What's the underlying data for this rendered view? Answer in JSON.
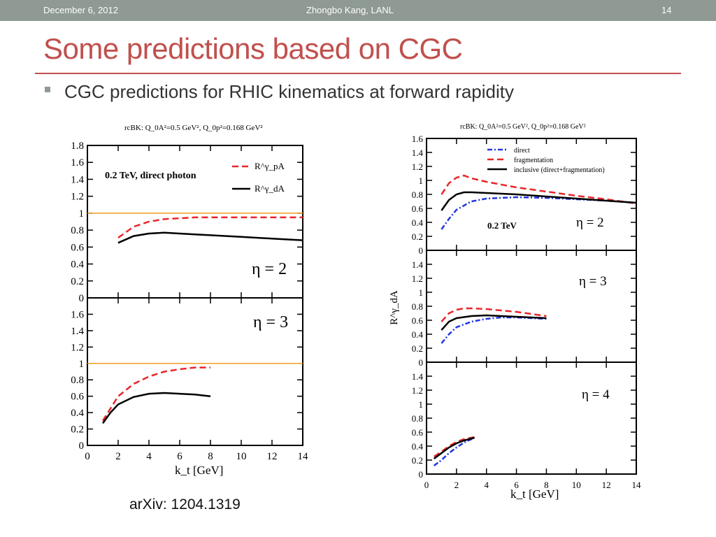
{
  "header": {
    "date": "December 6, 2012",
    "author": "Zhongbo Kang, LANL",
    "page": "14"
  },
  "slide": {
    "title": "Some predictions based on CGC",
    "bullet": "CGC predictions for RHIC kinematics at forward rapidity",
    "citation": "arXiv: 1204.1319"
  },
  "colors": {
    "bar": "#8e9a93",
    "accent": "#c0504d",
    "red_curve": "#e8262a",
    "blue_curve": "#2136e0",
    "unity_line": "#f0a020"
  },
  "chart_data": [
    {
      "type": "line",
      "header": "rcBK: Q_0A²=0.5 GeV², Q_0p²=0.168 GeV²",
      "xlabel": "k_t [GeV]",
      "ylabel": "",
      "xlim": [
        0,
        14
      ],
      "x_ticks": [
        "0",
        "2",
        "4",
        "6",
        "8",
        "10",
        "12",
        "14"
      ],
      "panel_label": "0.2 TeV, direct  photon",
      "legend": [
        {
          "label": "R^γ_pA",
          "style": "dashed-red"
        },
        {
          "label": "R^γ_dA",
          "style": "solid-black"
        }
      ],
      "panels": [
        {
          "eta_label": "η = 2",
          "ylim": [
            0,
            1.8
          ],
          "y_ticks": [
            "0",
            "0.2",
            "0.4",
            "0.6",
            "0.8",
            "1",
            "1.2",
            "1.4",
            "1.6",
            "1.8"
          ],
          "reference_line": 1,
          "series": [
            {
              "name": "R^γ_pA",
              "style": "dashed-red",
              "x": [
                2,
                3,
                4,
                5,
                6,
                7,
                8,
                10,
                12,
                14
              ],
              "y": [
                0.71,
                0.84,
                0.9,
                0.93,
                0.94,
                0.95,
                0.95,
                0.95,
                0.95,
                0.95
              ]
            },
            {
              "name": "R^γ_dA",
              "style": "solid-black",
              "x": [
                2,
                3,
                4,
                5,
                6,
                7,
                8,
                10,
                12,
                14
              ],
              "y": [
                0.65,
                0.73,
                0.76,
                0.77,
                0.76,
                0.75,
                0.74,
                0.72,
                0.7,
                0.68
              ]
            }
          ]
        },
        {
          "eta_label": "η = 3",
          "ylim": [
            0,
            1.8
          ],
          "y_ticks": [
            "0",
            "0.2",
            "0.4",
            "0.6",
            "0.8",
            "1",
            "1.2",
            "1.4",
            "1.6"
          ],
          "reference_line": 1,
          "series": [
            {
              "name": "R^γ_pA",
              "style": "dashed-red",
              "x": [
                1,
                1.5,
                2,
                3,
                4,
                5,
                6,
                7,
                8
              ],
              "y": [
                0.3,
                0.45,
                0.6,
                0.75,
                0.84,
                0.9,
                0.93,
                0.95,
                0.95
              ]
            },
            {
              "name": "R^γ_dA",
              "style": "solid-black",
              "x": [
                1,
                1.5,
                2,
                3,
                4,
                5,
                6,
                7,
                8
              ],
              "y": [
                0.27,
                0.4,
                0.5,
                0.59,
                0.63,
                0.64,
                0.63,
                0.62,
                0.6
              ]
            }
          ]
        }
      ]
    },
    {
      "type": "line",
      "header": "rcBK: Q_0A²=0.5 GeV², Q_0p²=0.168 GeV²",
      "xlabel": "k_t [GeV]",
      "ylabel": "R^γ_dA",
      "xlim": [
        0,
        14
      ],
      "x_ticks": [
        "0",
        "2",
        "4",
        "6",
        "8",
        "10",
        "12",
        "14"
      ],
      "panel_label": "0.2 TeV",
      "legend": [
        {
          "label": "direct",
          "style": "dashdot-blue"
        },
        {
          "label": "fragmentation",
          "style": "dashed-red"
        },
        {
          "label": "inclusive  (direct+fragmentation)",
          "style": "solid-black"
        }
      ],
      "panels": [
        {
          "eta_label": "η = 2",
          "ylim": [
            0,
            1.6
          ],
          "y_ticks": [
            "0",
            "0.2",
            "0.4",
            "0.6",
            "0.8",
            "1",
            "1.2",
            "1.4",
            "1.6"
          ],
          "series": [
            {
              "name": "direct",
              "style": "dashdot-blue",
              "x": [
                1,
                1.5,
                2,
                3,
                4,
                6,
                8,
                10,
                12,
                14
              ],
              "y": [
                0.3,
                0.45,
                0.58,
                0.7,
                0.74,
                0.76,
                0.75,
                0.73,
                0.71,
                0.68
              ]
            },
            {
              "name": "fragmentation",
              "style": "dashed-red",
              "x": [
                1,
                1.5,
                2,
                2.5,
                3,
                4,
                6,
                8,
                10,
                12,
                14
              ],
              "y": [
                0.8,
                0.96,
                1.04,
                1.07,
                1.03,
                0.98,
                0.9,
                0.84,
                0.78,
                0.73,
                0.67
              ]
            },
            {
              "name": "inclusive  (direct+fragmentation)",
              "style": "solid-black",
              "x": [
                1,
                1.5,
                2,
                2.5,
                3,
                4,
                6,
                8,
                10,
                12,
                14
              ],
              "y": [
                0.57,
                0.72,
                0.8,
                0.83,
                0.83,
                0.82,
                0.8,
                0.77,
                0.74,
                0.71,
                0.68
              ]
            }
          ]
        },
        {
          "eta_label": "η = 3",
          "ylim": [
            0,
            1.6
          ],
          "y_ticks": [
            "0",
            "0.2",
            "0.4",
            "0.6",
            "0.8",
            "1",
            "1.2",
            "1.4"
          ],
          "series": [
            {
              "name": "direct",
              "style": "dashdot-blue",
              "x": [
                1,
                1.5,
                2,
                3,
                4,
                5,
                6,
                7,
                8
              ],
              "y": [
                0.27,
                0.4,
                0.5,
                0.58,
                0.62,
                0.64,
                0.64,
                0.63,
                0.62
              ]
            },
            {
              "name": "fragmentation",
              "style": "dashed-red",
              "x": [
                1,
                1.5,
                2,
                2.5,
                3,
                4,
                5,
                6,
                7,
                8
              ],
              "y": [
                0.58,
                0.7,
                0.75,
                0.77,
                0.77,
                0.76,
                0.74,
                0.72,
                0.69,
                0.66
              ]
            },
            {
              "name": "inclusive  (direct+fragmentation)",
              "style": "solid-black",
              "x": [
                1,
                1.5,
                2,
                3,
                4,
                5,
                6,
                7,
                8
              ],
              "y": [
                0.46,
                0.58,
                0.63,
                0.66,
                0.67,
                0.66,
                0.65,
                0.64,
                0.63
              ]
            }
          ]
        },
        {
          "eta_label": "η = 4",
          "ylim": [
            0,
            1.6
          ],
          "y_ticks": [
            "0",
            "0.2",
            "0.4",
            "0.6",
            "0.8",
            "1",
            "1.2",
            "1.4"
          ],
          "series": [
            {
              "name": "direct",
              "style": "dashdot-blue",
              "x": [
                0.5,
                1,
                1.5,
                2,
                2.5,
                3.2
              ],
              "y": [
                0.12,
                0.2,
                0.3,
                0.38,
                0.45,
                0.52
              ]
            },
            {
              "name": "fragmentation",
              "style": "dashed-red",
              "x": [
                0.5,
                1,
                1.5,
                2,
                2.5,
                3.2
              ],
              "y": [
                0.25,
                0.32,
                0.4,
                0.46,
                0.5,
                0.53
              ]
            },
            {
              "name": "inclusive  (direct+fragmentation)",
              "style": "solid-black",
              "x": [
                0.5,
                1,
                1.5,
                2,
                2.5,
                3.2
              ],
              "y": [
                0.22,
                0.3,
                0.38,
                0.44,
                0.48,
                0.52
              ]
            }
          ]
        }
      ]
    }
  ]
}
